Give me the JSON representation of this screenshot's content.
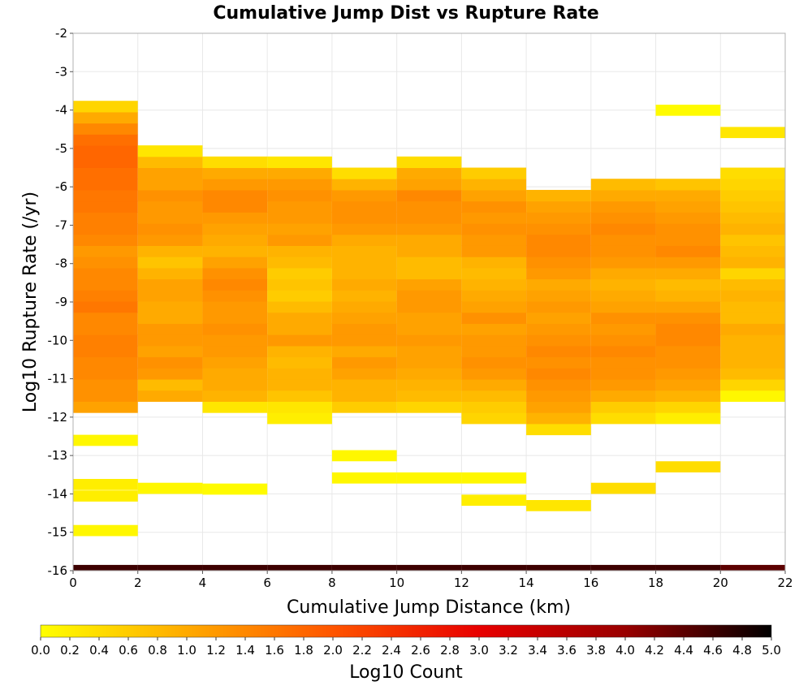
{
  "chart_data": {
    "type": "heatmap",
    "title": "Cumulative Jump Dist vs Rupture Rate",
    "xlabel": "Cumulative Jump Distance (km)",
    "ylabel": "Log10 Rupture Rate (/yr)",
    "colorbar_label": "Log10 Count",
    "xlim": [
      0,
      22
    ],
    "ylim": [
      -16,
      -2
    ],
    "x_ticks": [
      0,
      2,
      4,
      6,
      8,
      10,
      12,
      14,
      16,
      18,
      20,
      22
    ],
    "y_ticks": [
      -2,
      -3,
      -4,
      -5,
      -6,
      -7,
      -8,
      -9,
      -10,
      -11,
      -12,
      -13,
      -14,
      -15,
      -16
    ],
    "colorbar_range": [
      0.0,
      5.0
    ],
    "colorbar_ticks": [
      "0.0",
      "0.2",
      "0.4",
      "0.6",
      "0.8",
      "1.0",
      "1.2",
      "1.4",
      "1.6",
      "1.8",
      "2.0",
      "2.2",
      "2.4",
      "2.6",
      "2.8",
      "3.0",
      "3.2",
      "3.4",
      "3.6",
      "3.8",
      "4.0",
      "4.2",
      "4.4",
      "4.6",
      "4.8",
      "5.0"
    ],
    "colorscale": [
      "#ffff00",
      "#ffaa00",
      "#ff5500",
      "#e80000",
      "#990000",
      "#000000"
    ],
    "x_bin_width": 2,
    "y_bin_height": 0.29,
    "y_bin_origin": -16,
    "grid": true,
    "columns": [
      {
        "x": 0,
        "y_start": -11.88,
        "values": [
          1.1,
          1.3,
          1.3,
          1.4,
          1.4,
          1.5,
          1.5,
          1.4,
          1.4,
          1.6,
          1.5,
          1.4,
          1.4,
          1.3,
          1.2,
          1.4,
          1.5,
          1.5,
          1.6,
          1.6,
          1.7,
          1.7,
          1.8,
          1.8,
          1.7,
          1.4,
          1.0,
          0.5
        ]
      },
      {
        "x": 0,
        "cells": [
          {
            "y": -12.75,
            "value": 0.1
          },
          {
            "y": -13.9,
            "value": 0.2
          },
          {
            "y": -14.2,
            "value": 0.2
          },
          {
            "y": -15.1,
            "value": 0.1
          }
        ]
      },
      {
        "x": 2,
        "y_start": -11.59,
        "values": [
          1.0,
          0.8,
          1.2,
          1.3,
          1.1,
          1.2,
          1.2,
          1.0,
          1.0,
          1.1,
          1.1,
          0.9,
          0.7,
          0.9,
          1.2,
          1.3,
          1.2,
          1.2,
          1.3,
          1.1,
          1.1,
          0.8,
          0.3
        ]
      },
      {
        "x": 2,
        "cells": [
          {
            "y": -14.0,
            "value": 0.1
          }
        ]
      },
      {
        "x": 4,
        "y_start": -11.88,
        "values": [
          0.3,
          0.9,
          1.0,
          1.0,
          1.1,
          1.2,
          1.2,
          1.3,
          1.2,
          1.2,
          1.3,
          1.4,
          1.3,
          1.1,
          0.9,
          1.0,
          1.1,
          1.2,
          1.4,
          1.4,
          1.2,
          1.0,
          0.4
        ]
      },
      {
        "x": 4,
        "cells": [
          {
            "y": -14.02,
            "value": 0.05
          }
        ]
      },
      {
        "x": 6,
        "y_start": -12.17,
        "values": [
          0.2,
          0.3,
          0.7,
          0.9,
          0.9,
          0.8,
          0.9,
          1.2,
          1.0,
          1.0,
          0.8,
          0.6,
          0.7,
          0.6,
          0.8,
          0.9,
          1.2,
          1.1,
          1.2,
          1.2,
          1.3,
          1.2,
          1.0,
          0.3
        ]
      },
      {
        "x": 8,
        "y_start": -11.88,
        "values": [
          0.6,
          0.9,
          0.9,
          1.1,
          1.2,
          1.0,
          1.2,
          1.2,
          1.1,
          1.0,
          0.9,
          1.0,
          0.9,
          0.9,
          0.9,
          1.0,
          1.2,
          1.3,
          1.3,
          1.2,
          0.9,
          0.4
        ]
      },
      {
        "x": 8,
        "cells": [
          {
            "y": -13.15,
            "value": 0.1
          },
          {
            "y": -13.73,
            "value": 0.1
          }
        ]
      },
      {
        "x": 10,
        "y_start": -11.88,
        "values": [
          0.5,
          0.8,
          0.9,
          1.0,
          1.1,
          1.1,
          1.2,
          1.1,
          1.1,
          1.2,
          1.2,
          1.1,
          0.8,
          0.8,
          1.0,
          1.0,
          1.2,
          1.3,
          1.3,
          1.4,
          1.1,
          1.0,
          0.4
        ]
      },
      {
        "x": 10,
        "cells": [
          {
            "y": -13.73,
            "value": 0.1
          }
        ]
      },
      {
        "x": 12,
        "y_start": -12.17,
        "values": [
          0.5,
          0.6,
          0.8,
          1.0,
          1.2,
          1.3,
          1.2,
          1.2,
          1.1,
          1.3,
          1.1,
          1.0,
          0.9,
          0.8,
          0.9,
          1.2,
          1.2,
          1.3,
          1.2,
          1.3,
          1.1,
          0.9,
          0.6
        ]
      },
      {
        "x": 12,
        "cells": [
          {
            "y": -13.73,
            "value": 0.1
          },
          {
            "y": -14.31,
            "value": 0.2
          }
        ]
      },
      {
        "x": 14,
        "y_start": -12.46,
        "values": [
          0.4,
          0.9,
          1.1,
          1.2,
          1.3,
          1.4,
          1.3,
          1.4,
          1.3,
          1.2,
          1.1,
          1.2,
          1.1,
          1.0,
          1.2,
          1.3,
          1.4,
          1.4,
          1.3,
          1.2,
          1.1,
          0.9
        ]
      },
      {
        "x": 14,
        "cells": [
          {
            "y": -14.45,
            "value": 0.3
          }
        ]
      },
      {
        "x": 16,
        "y_start": -12.17,
        "values": [
          0.4,
          0.6,
          1.0,
          1.2,
          1.3,
          1.3,
          1.4,
          1.3,
          1.2,
          1.3,
          1.1,
          1.0,
          0.9,
          1.0,
          1.2,
          1.3,
          1.3,
          1.4,
          1.3,
          1.2,
          1.0,
          0.8
        ]
      },
      {
        "x": 16,
        "cells": [
          {
            "y": -14.0,
            "value": 0.4
          }
        ]
      },
      {
        "x": 18,
        "y_start": -12.17,
        "values": [
          0.2,
          0.5,
          0.9,
          1.1,
          1.2,
          1.3,
          1.3,
          1.4,
          1.4,
          1.3,
          1.1,
          0.9,
          0.8,
          1.0,
          1.2,
          1.4,
          1.3,
          1.3,
          1.2,
          1.1,
          1.0,
          0.7
        ]
      },
      {
        "x": 18,
        "cells": [
          {
            "y": -13.44,
            "value": 0.4
          },
          {
            "y": -4.15,
            "value": 0.05
          }
        ]
      },
      {
        "x": 20,
        "y_start": -11.59,
        "values": [
          0.1,
          0.5,
          0.8,
          0.9,
          0.9,
          0.9,
          1.0,
          0.8,
          0.8,
          0.9,
          0.8,
          0.5,
          0.9,
          0.8,
          0.7,
          0.9,
          0.8,
          0.7,
          0.6,
          0.5,
          0.4
        ]
      },
      {
        "x": 20,
        "cells": [
          {
            "y": -4.73,
            "value": 0.3
          }
        ]
      }
    ],
    "bottom_band": [
      4.6,
      4.6,
      4.6,
      4.6,
      4.6,
      4.6,
      4.6,
      4.6,
      4.6,
      4.6,
      4.4
    ]
  }
}
